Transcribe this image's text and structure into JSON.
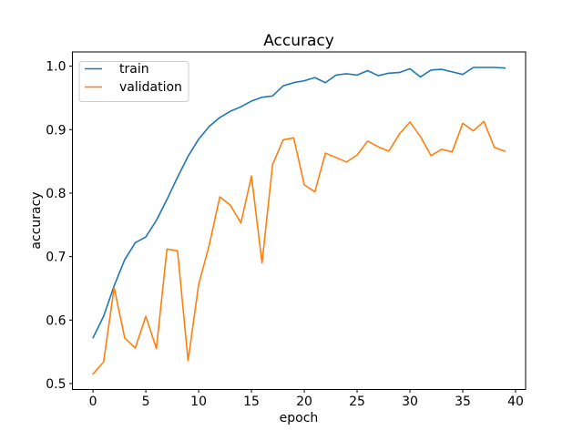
{
  "figure": {
    "background": "#ffffff"
  },
  "chart_data": {
    "type": "line",
    "title": "Accuracy",
    "xlabel": "epoch",
    "ylabel": "accuracy",
    "x": [
      0,
      1,
      2,
      3,
      4,
      5,
      6,
      7,
      8,
      9,
      10,
      11,
      12,
      13,
      14,
      15,
      16,
      17,
      18,
      19,
      20,
      21,
      22,
      23,
      24,
      25,
      26,
      27,
      28,
      29,
      30,
      31,
      32,
      33,
      34,
      35,
      36,
      37,
      38,
      39
    ],
    "series": [
      {
        "name": "train",
        "color": "#1f77b4",
        "values": [
          0.572,
          0.606,
          0.654,
          0.695,
          0.722,
          0.731,
          0.757,
          0.79,
          0.825,
          0.858,
          0.885,
          0.905,
          0.919,
          0.929,
          0.936,
          0.945,
          0.951,
          0.953,
          0.969,
          0.974,
          0.977,
          0.982,
          0.974,
          0.986,
          0.988,
          0.986,
          0.993,
          0.985,
          0.989,
          0.99,
          0.996,
          0.983,
          0.994,
          0.995,
          0.991,
          0.987,
          0.998,
          0.998,
          0.998,
          0.997
        ]
      },
      {
        "name": "validation",
        "color": "#ff7f0e",
        "values": [
          0.515,
          0.534,
          0.651,
          0.572,
          0.556,
          0.606,
          0.555,
          0.712,
          0.709,
          0.536,
          0.656,
          0.718,
          0.794,
          0.781,
          0.753,
          0.827,
          0.69,
          0.845,
          0.884,
          0.887,
          0.813,
          0.802,
          0.863,
          0.856,
          0.849,
          0.86,
          0.882,
          0.873,
          0.866,
          0.893,
          0.912,
          0.889,
          0.859,
          0.869,
          0.865,
          0.91,
          0.898,
          0.913,
          0.872,
          0.866
        ]
      }
    ],
    "xticks": [
      0,
      5,
      10,
      15,
      20,
      25,
      30,
      35,
      40
    ],
    "xtick_labels": [
      "0",
      "5",
      "10",
      "15",
      "20",
      "25",
      "30",
      "35",
      "40"
    ],
    "yticks": [
      0.5,
      0.6,
      0.7,
      0.8,
      0.9,
      1.0
    ],
    "ytick_labels": [
      "0.5",
      "0.6",
      "0.7",
      "0.8",
      "0.9",
      "1.0"
    ],
    "xlim": [
      -1.95,
      40.95
    ],
    "ylim": [
      0.4906,
      1.0224
    ],
    "grid": false,
    "legend": {
      "position": "upper left",
      "entries": [
        "train",
        "validation"
      ]
    }
  }
}
